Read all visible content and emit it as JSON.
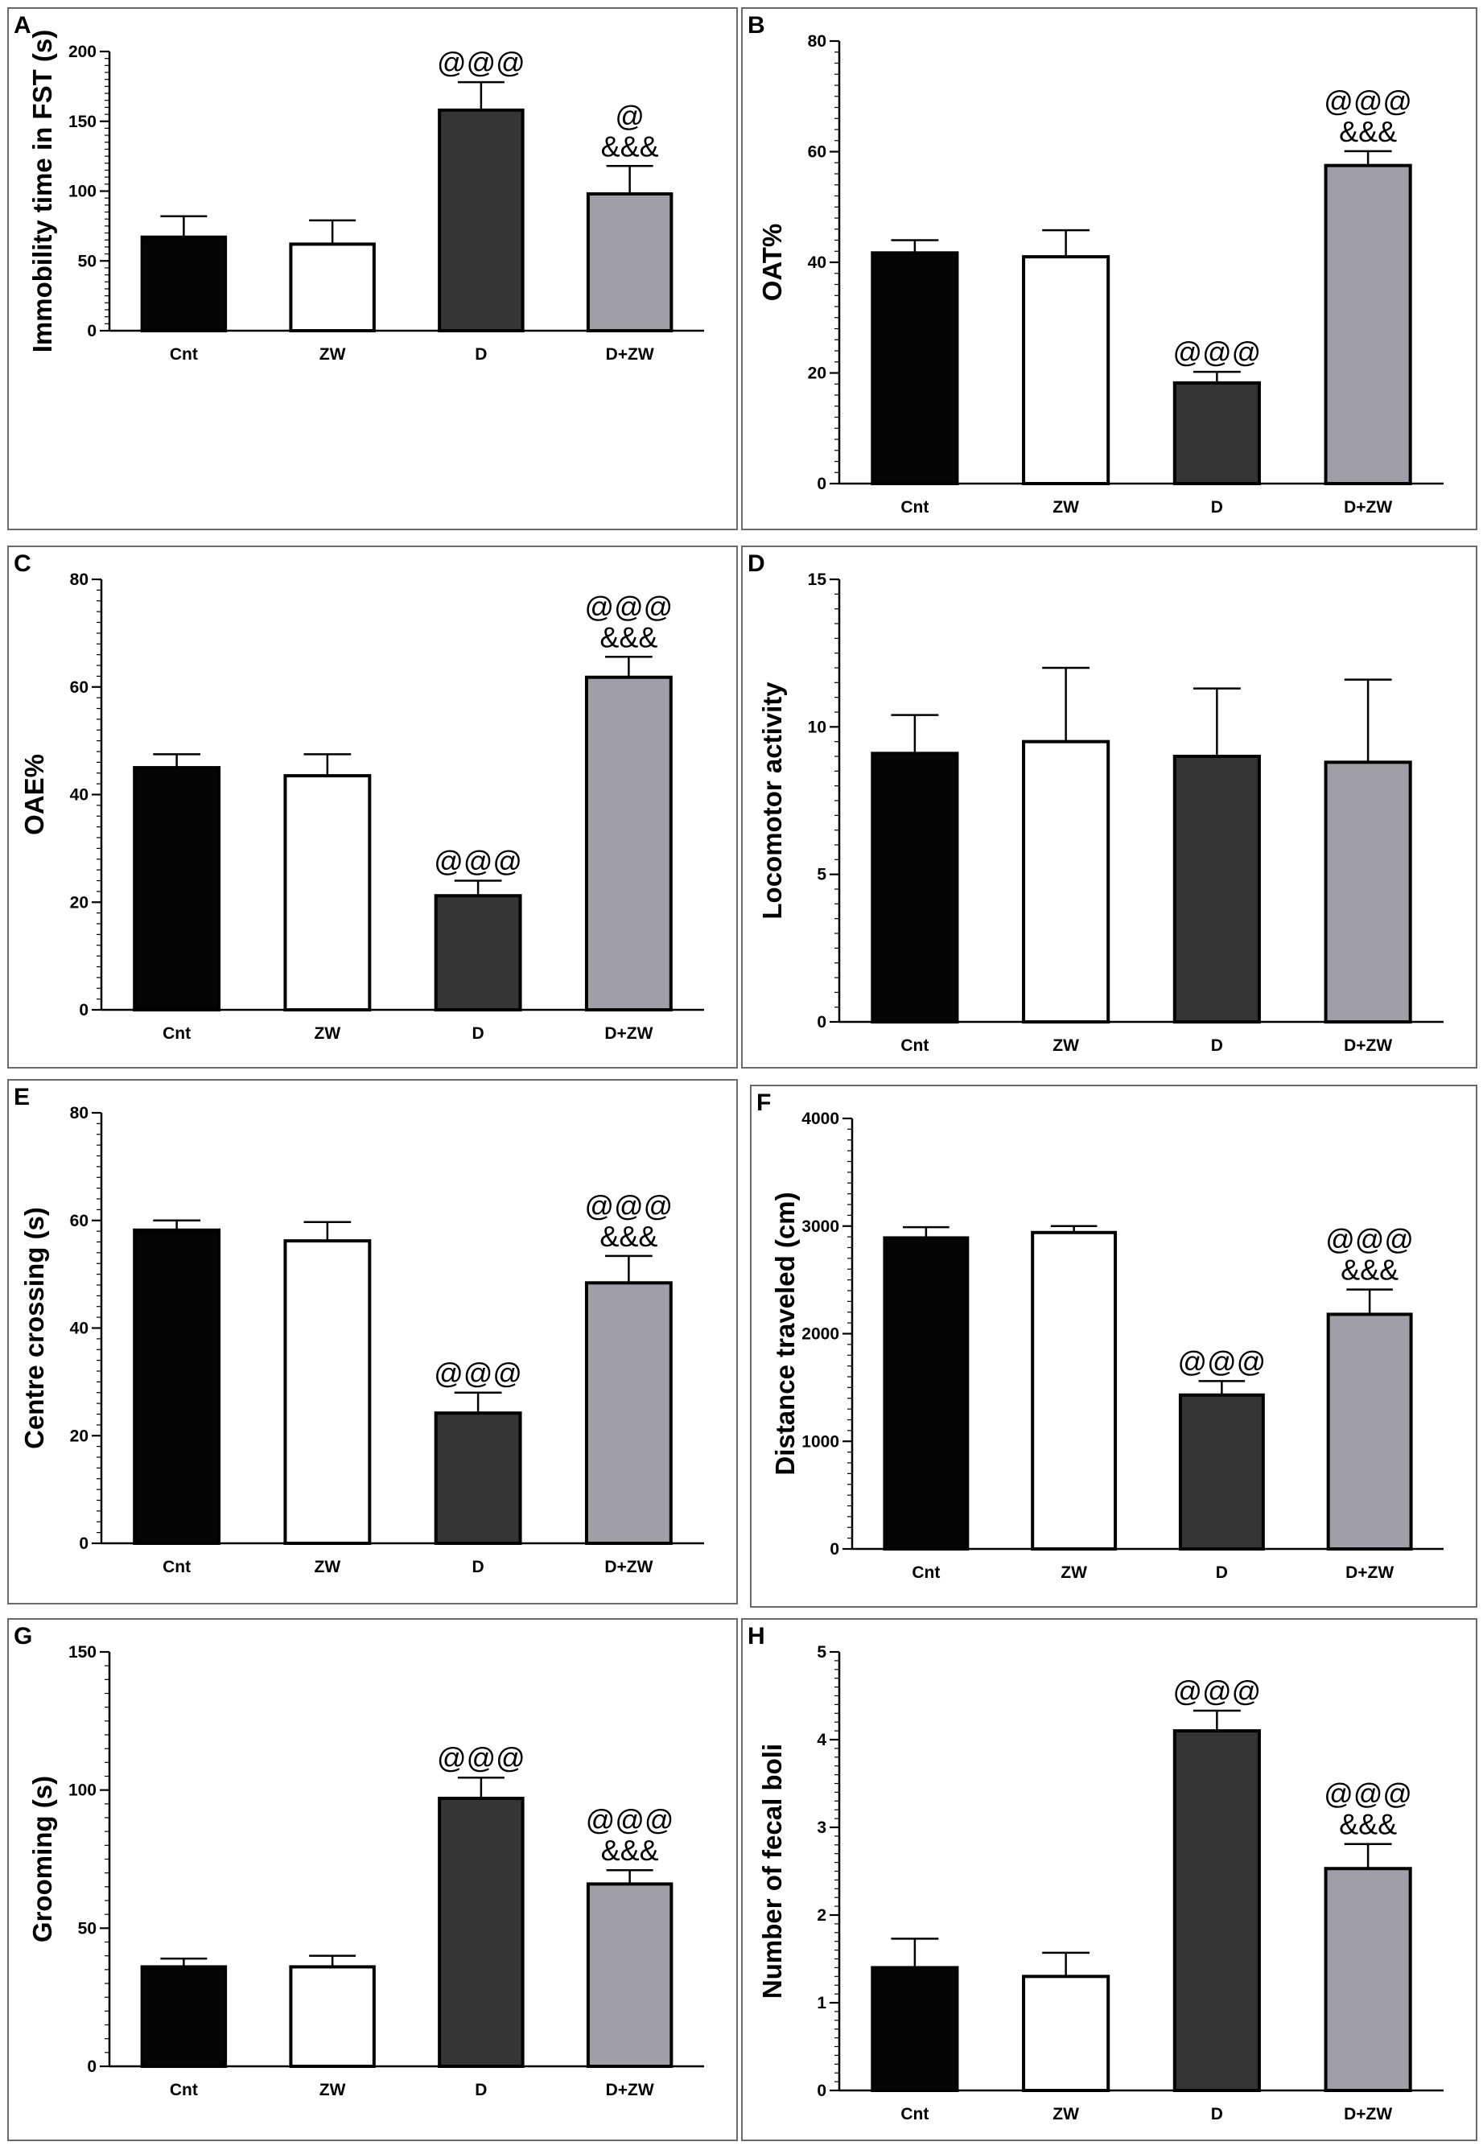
{
  "colors": {
    "Cnt": "#050505",
    "ZW": "#ffffff",
    "D": "#353535",
    "D+ZW": "#9f9fa5"
  },
  "chart_data": [
    {
      "id": "A",
      "type": "bar",
      "ylabel": "Immobility time in FST (s)",
      "ylim": [
        0,
        200
      ],
      "ticks": [
        0,
        50,
        100,
        150,
        200
      ],
      "categories": [
        "Cnt",
        "ZW",
        "D",
        "D+ZW"
      ],
      "values": [
        67,
        62,
        158,
        98
      ],
      "errors": [
        15,
        17,
        20,
        20
      ],
      "annotations": [
        [],
        [],
        [
          "@@@"
        ],
        [
          "@",
          "&&&"
        ]
      ]
    },
    {
      "id": "B",
      "type": "bar",
      "ylabel": "OAT%",
      "ylim": [
        0,
        80
      ],
      "ticks": [
        0,
        20,
        40,
        60,
        80
      ],
      "categories": [
        "Cnt",
        "ZW",
        "D",
        "D+ZW"
      ],
      "values": [
        41.7,
        41,
        18.2,
        57.5
      ],
      "errors": [
        2.3,
        4.8,
        2,
        2.6
      ],
      "annotations": [
        [],
        [],
        [
          "@@@"
        ],
        [
          "@@@",
          "&&&"
        ]
      ]
    },
    {
      "id": "C",
      "type": "bar",
      "ylabel": "OAE%",
      "ylim": [
        0,
        80
      ],
      "ticks": [
        0,
        20,
        40,
        60,
        80
      ],
      "categories": [
        "Cnt",
        "ZW",
        "D",
        "D+ZW"
      ],
      "values": [
        45,
        43.5,
        21.2,
        61.8
      ],
      "errors": [
        2.5,
        4,
        2.8,
        3.8
      ],
      "annotations": [
        [],
        [],
        [
          "@@@"
        ],
        [
          "@@@",
          "&&&"
        ]
      ]
    },
    {
      "id": "D",
      "type": "bar",
      "ylabel": "Locomotor activity",
      "ylim": [
        0,
        15
      ],
      "ticks": [
        0,
        5,
        10,
        15
      ],
      "categories": [
        "Cnt",
        "ZW",
        "D",
        "D+ZW"
      ],
      "values": [
        9.1,
        9.5,
        9,
        8.8
      ],
      "errors": [
        1.3,
        2.5,
        2.3,
        2.8
      ],
      "annotations": [
        [],
        [],
        [],
        []
      ]
    },
    {
      "id": "E",
      "type": "bar",
      "ylabel": "Centre crossing (s)",
      "ylim": [
        0,
        80
      ],
      "ticks": [
        0,
        20,
        40,
        60,
        80
      ],
      "categories": [
        "Cnt",
        "ZW",
        "D",
        "D+ZW"
      ],
      "values": [
        58.2,
        56.2,
        24.2,
        48.4
      ],
      "errors": [
        1.8,
        3.5,
        3.8,
        5
      ],
      "annotations": [
        [],
        [],
        [
          "@@@"
        ],
        [
          "@@@",
          "&&&"
        ]
      ]
    },
    {
      "id": "F",
      "type": "bar",
      "ylabel": "Distance traveled (cm)",
      "ylim": [
        0,
        4000
      ],
      "ticks": [
        0,
        1000,
        2000,
        3000,
        4000
      ],
      "categories": [
        "Cnt",
        "ZW",
        "D",
        "D+ZW"
      ],
      "values": [
        2890,
        2940,
        1430,
        2180
      ],
      "errors": [
        100,
        60,
        130,
        230
      ],
      "annotations": [
        [],
        [],
        [
          "@@@"
        ],
        [
          "@@@",
          "&&&"
        ]
      ]
    },
    {
      "id": "G",
      "type": "bar",
      "ylabel": "Grooming (s)",
      "ylim": [
        0,
        150
      ],
      "ticks": [
        0,
        50,
        100,
        150
      ],
      "categories": [
        "Cnt",
        "ZW",
        "D",
        "D+ZW"
      ],
      "values": [
        36,
        36,
        97,
        66
      ],
      "errors": [
        3,
        4,
        7.5,
        5
      ],
      "annotations": [
        [],
        [],
        [
          "@@@"
        ],
        [
          "@@@",
          "&&&"
        ]
      ]
    },
    {
      "id": "H",
      "type": "bar",
      "ylabel": "Number of fecal boli",
      "ylim": [
        0,
        5
      ],
      "ticks": [
        0,
        1,
        2,
        3,
        4,
        5
      ],
      "categories": [
        "Cnt",
        "ZW",
        "D",
        "D+ZW"
      ],
      "values": [
        1.4,
        1.3,
        4.1,
        2.53
      ],
      "errors": [
        0.33,
        0.27,
        0.23,
        0.28
      ],
      "annotations": [
        [],
        [],
        [
          "@@@"
        ],
        [
          "@@@",
          "&&&"
        ]
      ]
    }
  ]
}
